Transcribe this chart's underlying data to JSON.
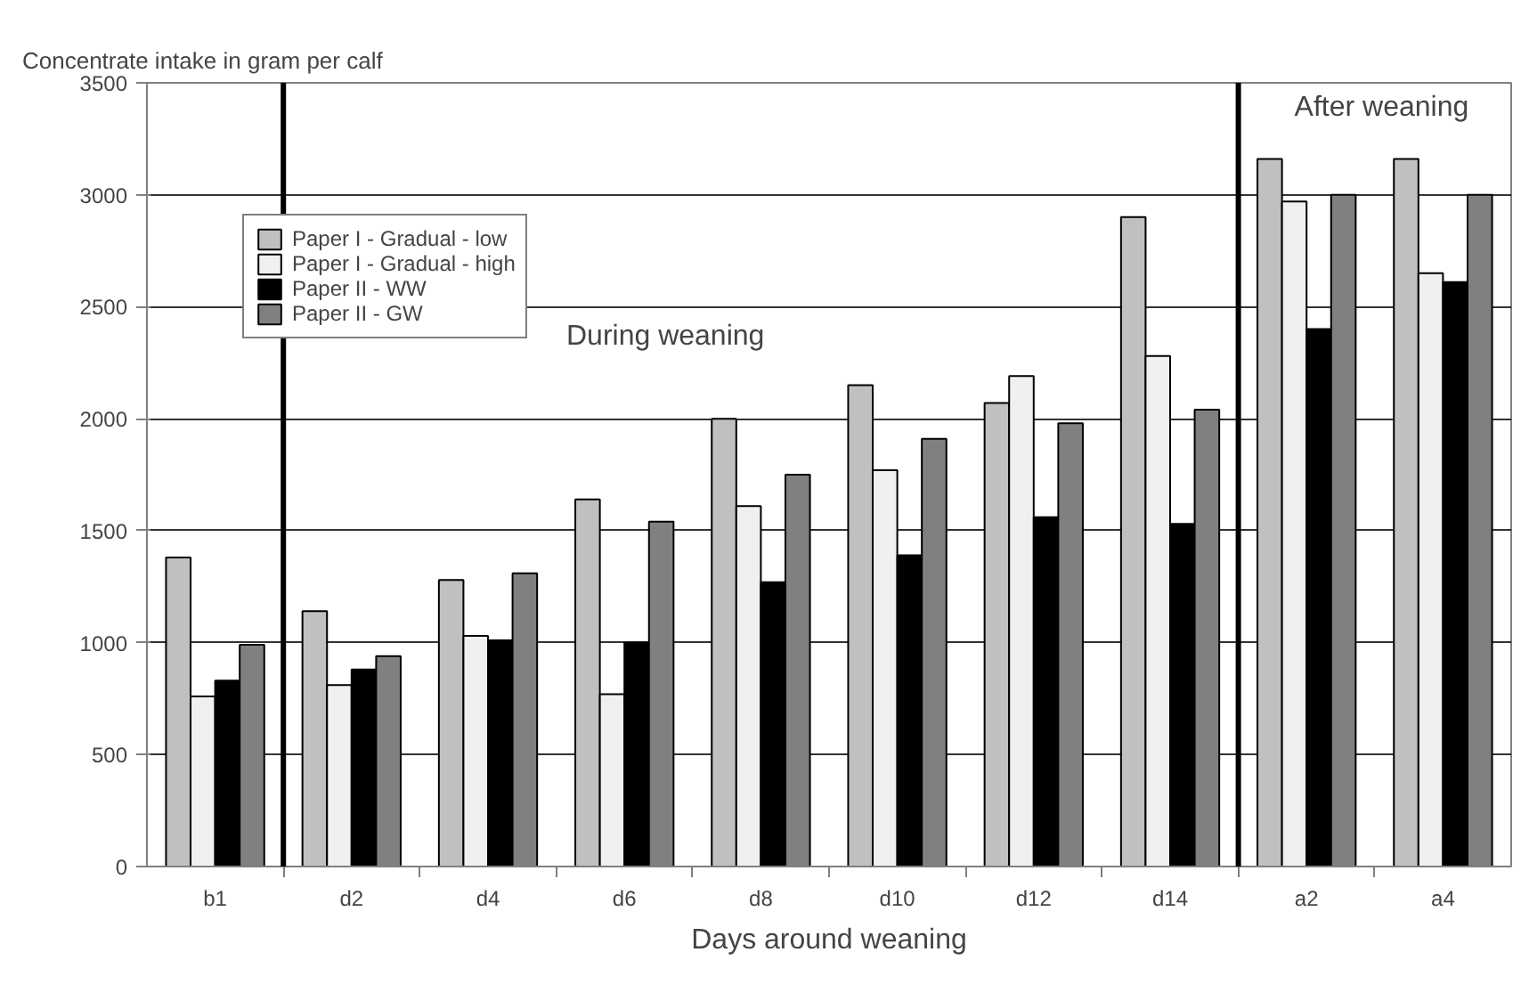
{
  "chart_data": {
    "type": "bar",
    "ylabel": "Concentrate intake in gram per calf",
    "xlabel": "Days around weaning",
    "categories": [
      "b1",
      "d2",
      "d4",
      "d6",
      "d8",
      "d10",
      "d12",
      "d14",
      "a2",
      "a4"
    ],
    "series": [
      {
        "name": "Paper I - Gradual - low",
        "color": "#c0c0c0",
        "values": [
          1380,
          1140,
          1280,
          1640,
          2000,
          2150,
          2070,
          2900,
          3160,
          3160
        ]
      },
      {
        "name": "Paper I - Gradual - high",
        "color": "#f0f0f0",
        "values": [
          760,
          810,
          1030,
          770,
          1610,
          1770,
          2190,
          2280,
          2970,
          2650
        ]
      },
      {
        "name": "Paper II - WW",
        "color": "#000000",
        "values": [
          830,
          880,
          1010,
          1000,
          1270,
          1390,
          1560,
          1530,
          2400,
          2610
        ]
      },
      {
        "name": "Paper II - GW",
        "color": "#808080",
        "values": [
          990,
          940,
          1310,
          1540,
          1750,
          1910,
          1980,
          2040,
          3000,
          3000
        ]
      }
    ],
    "ylim": [
      0,
      3500
    ],
    "yticks": [
      0,
      500,
      1000,
      1500,
      2000,
      2500,
      3000,
      3500
    ],
    "grid": "y",
    "legend": "top left",
    "annotations": [
      "During weaning",
      "After weaning"
    ]
  }
}
